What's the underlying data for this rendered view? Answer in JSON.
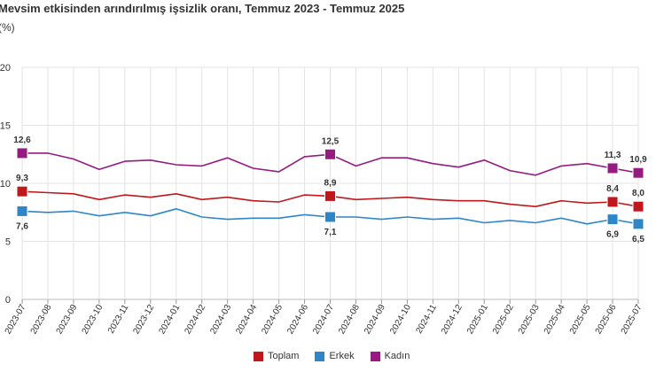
{
  "title": "Mevsim etkisinden arındırılmış işsizlik oranı, Temmuz 2023 - Temmuz 2025",
  "subtitle": "(%)",
  "legend": {
    "items": [
      {
        "label": "Toplam",
        "color": "#c0171d"
      },
      {
        "label": "Erkek",
        "color": "#2e86c8"
      },
      {
        "label": "Kadın",
        "color": "#951b81"
      }
    ]
  },
  "chart_data": {
    "type": "line",
    "title": "Mevsim etkisinden arındırılmış işsizlik oranı, Temmuz 2023 - Temmuz 2025",
    "ylabel": "(%)",
    "xlabel": "",
    "ylim": [
      0,
      20
    ],
    "yticks": [
      0,
      5,
      10,
      15,
      20
    ],
    "grid": true,
    "legend_position": "bottom",
    "x": [
      "2023-07",
      "2023-08",
      "2023-09",
      "2023-10",
      "2023-11",
      "2023-12",
      "2024-01",
      "2024-02",
      "2024-03",
      "2024-04",
      "2024-05",
      "2024-06",
      "2024-07",
      "2024-08",
      "2024-09",
      "2024-10",
      "2024-11",
      "2024-12",
      "2025-01",
      "2025-02",
      "2025-03",
      "2025-04",
      "2025-05",
      "2025-06",
      "2025-07"
    ],
    "series": [
      {
        "name": "Toplam",
        "color": "#c0171d",
        "values": [
          9.3,
          9.2,
          9.1,
          8.6,
          9.0,
          8.8,
          9.1,
          8.6,
          8.8,
          8.5,
          8.4,
          9.0,
          8.9,
          8.6,
          8.7,
          8.8,
          8.6,
          8.5,
          8.5,
          8.2,
          8.0,
          8.5,
          8.3,
          8.4,
          8.0
        ],
        "labels": {
          "0": "9,3",
          "12": "8,9",
          "23": "8,4",
          "24": "8,0"
        }
      },
      {
        "name": "Erkek",
        "color": "#2e86c8",
        "values": [
          7.6,
          7.5,
          7.6,
          7.2,
          7.5,
          7.2,
          7.8,
          7.1,
          6.9,
          7.0,
          7.0,
          7.3,
          7.1,
          7.1,
          6.9,
          7.1,
          6.9,
          7.0,
          6.6,
          6.8,
          6.6,
          7.0,
          6.5,
          6.9,
          6.5
        ],
        "labels": {
          "0": "7,6",
          "12": "7,1",
          "23": "6,9",
          "24": "6,5"
        }
      },
      {
        "name": "Kadın",
        "color": "#951b81",
        "values": [
          12.6,
          12.6,
          12.1,
          11.2,
          11.9,
          12.0,
          11.6,
          11.5,
          12.2,
          11.3,
          11.0,
          12.3,
          12.5,
          11.5,
          12.2,
          12.2,
          11.7,
          11.4,
          12.0,
          11.1,
          10.7,
          11.5,
          11.7,
          11.3,
          10.9
        ],
        "labels": {
          "0": "12,6",
          "12": "12,5",
          "23": "11,3",
          "24": "10,9"
        }
      }
    ]
  }
}
